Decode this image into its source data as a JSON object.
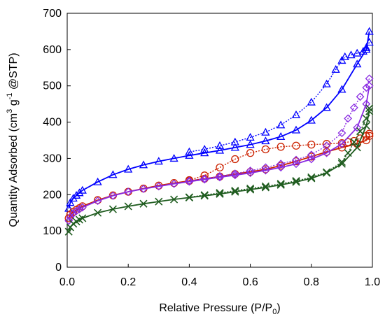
{
  "chart_data": {
    "type": "line",
    "title": "",
    "xlabel": "Relative Pressure (P/P",
    "xlabel_sub": "0",
    "xlabel_end": ")",
    "ylabel_parts": [
      "Quantity Adsorbed (cm",
      "3",
      " g",
      "-1",
      " @STP)"
    ],
    "xlim": [
      0.0,
      1.0
    ],
    "ylim": [
      0,
      700
    ],
    "xticks": [
      "0.0",
      "0.2",
      "0.4",
      "0.6",
      "0.8",
      "1.0"
    ],
    "yticks": [
      "0",
      "100",
      "200",
      "300",
      "400",
      "500",
      "600",
      "700"
    ],
    "grid": false,
    "legend": "none",
    "series": [
      {
        "color": "#0000ff",
        "marker": "triangle",
        "adsorption": {
          "x": [
            0.005,
            0.01,
            0.02,
            0.03,
            0.04,
            0.05,
            0.1,
            0.15,
            0.2,
            0.25,
            0.3,
            0.35,
            0.4,
            0.45,
            0.5,
            0.55,
            0.6,
            0.65,
            0.7,
            0.75,
            0.8,
            0.85,
            0.9,
            0.95,
            0.98,
            0.99
          ],
          "y": [
            162,
            178,
            190,
            198,
            205,
            212,
            235,
            255,
            270,
            282,
            292,
            300,
            308,
            315,
            322,
            330,
            338,
            348,
            360,
            378,
            405,
            440,
            490,
            560,
            600,
            650
          ]
        },
        "desorption": {
          "x": [
            0.99,
            0.98,
            0.97,
            0.95,
            0.93,
            0.91,
            0.9,
            0.88,
            0.85,
            0.8,
            0.75,
            0.7,
            0.65,
            0.6,
            0.55,
            0.5,
            0.45,
            0.4
          ],
          "y": [
            620,
            605,
            595,
            590,
            585,
            580,
            570,
            545,
            505,
            455,
            420,
            392,
            372,
            358,
            345,
            335,
            325,
            318
          ]
        }
      },
      {
        "color": "#cc2200",
        "marker": "circle",
        "adsorption": {
          "x": [
            0.005,
            0.01,
            0.02,
            0.03,
            0.04,
            0.05,
            0.1,
            0.15,
            0.2,
            0.25,
            0.3,
            0.35,
            0.4,
            0.45,
            0.5,
            0.55,
            0.6,
            0.65,
            0.7,
            0.75,
            0.8,
            0.85,
            0.9,
            0.95,
            0.98,
            0.99
          ],
          "y": [
            135,
            145,
            153,
            158,
            163,
            168,
            185,
            198,
            208,
            217,
            225,
            232,
            238,
            244,
            250,
            257,
            263,
            270,
            280,
            292,
            305,
            318,
            330,
            340,
            350,
            362
          ]
        },
        "desorption": {
          "x": [
            0.99,
            0.98,
            0.96,
            0.94,
            0.92,
            0.9,
            0.85,
            0.8,
            0.75,
            0.7,
            0.65,
            0.6,
            0.55,
            0.5,
            0.45,
            0.4
          ],
          "y": [
            368,
            362,
            355,
            348,
            345,
            342,
            340,
            338,
            335,
            332,
            325,
            315,
            298,
            275,
            253,
            240
          ]
        }
      },
      {
        "color": "#8a2be2",
        "marker": "diamond",
        "adsorption": {
          "x": [
            0.005,
            0.01,
            0.02,
            0.03,
            0.04,
            0.05,
            0.1,
            0.15,
            0.2,
            0.25,
            0.3,
            0.35,
            0.4,
            0.45,
            0.5,
            0.55,
            0.6,
            0.65,
            0.7,
            0.75,
            0.8,
            0.85,
            0.9,
            0.95,
            0.98,
            0.99
          ],
          "y": [
            128,
            138,
            148,
            155,
            160,
            165,
            183,
            197,
            208,
            216,
            223,
            230,
            236,
            242,
            248,
            254,
            260,
            267,
            275,
            285,
            298,
            315,
            340,
            385,
            450,
            500
          ]
        },
        "desorption": {
          "x": [
            0.99,
            0.98,
            0.96,
            0.94,
            0.92,
            0.9,
            0.85,
            0.8,
            0.75,
            0.7,
            0.65,
            0.6,
            0.55,
            0.5,
            0.45,
            0.4
          ],
          "y": [
            520,
            495,
            470,
            440,
            410,
            370,
            335,
            310,
            296,
            285,
            275,
            266,
            258,
            251,
            244,
            238
          ]
        }
      },
      {
        "color": "#1f5c1f",
        "marker": "x",
        "adsorption": {
          "x": [
            0.005,
            0.01,
            0.02,
            0.03,
            0.04,
            0.05,
            0.1,
            0.15,
            0.2,
            0.25,
            0.3,
            0.35,
            0.4,
            0.45,
            0.5,
            0.55,
            0.6,
            0.65,
            0.7,
            0.75,
            0.8,
            0.85,
            0.9,
            0.95,
            0.98,
            0.99
          ],
          "y": [
            98,
            110,
            120,
            126,
            131,
            135,
            150,
            160,
            168,
            175,
            181,
            187,
            192,
            197,
            202,
            208,
            214,
            220,
            227,
            235,
            245,
            260,
            285,
            330,
            390,
            430
          ]
        },
        "desorption": {
          "x": [
            0.99,
            0.98,
            0.96,
            0.94,
            0.92,
            0.9,
            0.85,
            0.8,
            0.75,
            0.7,
            0.65,
            0.6,
            0.55,
            0.5,
            0.45,
            0.4
          ],
          "y": [
            438,
            410,
            375,
            345,
            315,
            290,
            262,
            248,
            238,
            230,
            223,
            217,
            211,
            205,
            199,
            193
          ]
        }
      }
    ]
  }
}
